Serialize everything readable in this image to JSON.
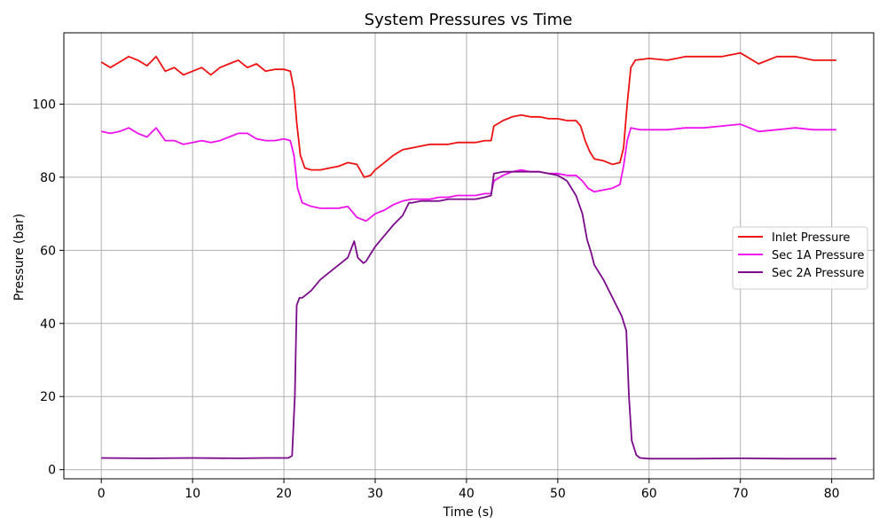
{
  "chart_data": {
    "type": "line",
    "title": "System Pressures vs Time",
    "xlabel": "Time (s)",
    "ylabel": "Pressure (bar)",
    "xlim": [
      -4.1,
      84.6
    ],
    "ylim": [
      -2.5,
      119.5
    ],
    "xticks": [
      0,
      10,
      20,
      30,
      40,
      50,
      60,
      70,
      80
    ],
    "yticks": [
      0,
      20,
      40,
      60,
      80,
      100
    ],
    "grid": true,
    "legend_position": "center-right",
    "series": [
      {
        "name": "Inlet Pressure",
        "color": "#ee1111",
        "points": [
          [
            0,
            111.5
          ],
          [
            1,
            110
          ],
          [
            2,
            111.5
          ],
          [
            3,
            113
          ],
          [
            4,
            112
          ],
          [
            5,
            110.5
          ],
          [
            6,
            113
          ],
          [
            7,
            109
          ],
          [
            8,
            110
          ],
          [
            9,
            108
          ],
          [
            10,
            109
          ],
          [
            11,
            110
          ],
          [
            12,
            108
          ],
          [
            13,
            110
          ],
          [
            14,
            111
          ],
          [
            15,
            112
          ],
          [
            16,
            110
          ],
          [
            17,
            111
          ],
          [
            18,
            109
          ],
          [
            19,
            109.5
          ],
          [
            20,
            109.5
          ],
          [
            20.7,
            109
          ],
          [
            21.1,
            104
          ],
          [
            21.4,
            95
          ],
          [
            21.8,
            86
          ],
          [
            22.3,
            82.5
          ],
          [
            23,
            82
          ],
          [
            24,
            82
          ],
          [
            25,
            82.5
          ],
          [
            26,
            83
          ],
          [
            27,
            84
          ],
          [
            28,
            83.5
          ],
          [
            28.8,
            80
          ],
          [
            29.5,
            80.5
          ],
          [
            30,
            82
          ],
          [
            31,
            84
          ],
          [
            32,
            86
          ],
          [
            33,
            87.5
          ],
          [
            34,
            88
          ],
          [
            35,
            88.5
          ],
          [
            36,
            89
          ],
          [
            37,
            89
          ],
          [
            38,
            89
          ],
          [
            39,
            89.5
          ],
          [
            40,
            89.5
          ],
          [
            41,
            89.5
          ],
          [
            42,
            90
          ],
          [
            42.7,
            90
          ],
          [
            43,
            94
          ],
          [
            44,
            95.5
          ],
          [
            45,
            96.5
          ],
          [
            46,
            97
          ],
          [
            47,
            96.5
          ],
          [
            48,
            96.5
          ],
          [
            49,
            96
          ],
          [
            50,
            96
          ],
          [
            51,
            95.5
          ],
          [
            52,
            95.5
          ],
          [
            52.5,
            94
          ],
          [
            53,
            90
          ],
          [
            53.5,
            87
          ],
          [
            54,
            85
          ],
          [
            55,
            84.5
          ],
          [
            56,
            83.5
          ],
          [
            56.8,
            84
          ],
          [
            57.2,
            88
          ],
          [
            57.6,
            100
          ],
          [
            58,
            110
          ],
          [
            58.5,
            112
          ],
          [
            60,
            112.5
          ],
          [
            62,
            112
          ],
          [
            64,
            113
          ],
          [
            66,
            113
          ],
          [
            68,
            113
          ],
          [
            70,
            114
          ],
          [
            72,
            111
          ],
          [
            74,
            113
          ],
          [
            76,
            113
          ],
          [
            78,
            112
          ],
          [
            80,
            112
          ],
          [
            80.5,
            112
          ]
        ]
      },
      {
        "name": "Sec 1A Pressure",
        "color": "#ee11ee",
        "points": [
          [
            0,
            92.5
          ],
          [
            1,
            92
          ],
          [
            2,
            92.5
          ],
          [
            3,
            93.5
          ],
          [
            4,
            92
          ],
          [
            5,
            91
          ],
          [
            6,
            93.5
          ],
          [
            7,
            90
          ],
          [
            8,
            90
          ],
          [
            9,
            89
          ],
          [
            10,
            89.5
          ],
          [
            11,
            90
          ],
          [
            12,
            89.5
          ],
          [
            13,
            90
          ],
          [
            14,
            91
          ],
          [
            15,
            92
          ],
          [
            16,
            92
          ],
          [
            17,
            90.5
          ],
          [
            18,
            90
          ],
          [
            19,
            90
          ],
          [
            20,
            90.5
          ],
          [
            20.7,
            90
          ],
          [
            21.1,
            86
          ],
          [
            21.5,
            77
          ],
          [
            22,
            73
          ],
          [
            23,
            72
          ],
          [
            24,
            71.5
          ],
          [
            25,
            71.5
          ],
          [
            26,
            71.5
          ],
          [
            27,
            72
          ],
          [
            28,
            69
          ],
          [
            29,
            68
          ],
          [
            30,
            70
          ],
          [
            31,
            71
          ],
          [
            32,
            72.5
          ],
          [
            33,
            73.5
          ],
          [
            34,
            74
          ],
          [
            35,
            74
          ],
          [
            36,
            74
          ],
          [
            37,
            74.5
          ],
          [
            38,
            74.5
          ],
          [
            39,
            75
          ],
          [
            40,
            75
          ],
          [
            41,
            75
          ],
          [
            42,
            75.5
          ],
          [
            42.7,
            75.5
          ],
          [
            43,
            79
          ],
          [
            44,
            80.5
          ],
          [
            45,
            81.5
          ],
          [
            46,
            82
          ],
          [
            47,
            81.5
          ],
          [
            48,
            81.5
          ],
          [
            49,
            81
          ],
          [
            50,
            81
          ],
          [
            51,
            80.5
          ],
          [
            52,
            80.5
          ],
          [
            52.7,
            79
          ],
          [
            53.3,
            77
          ],
          [
            54,
            76
          ],
          [
            55,
            76.5
          ],
          [
            56,
            77
          ],
          [
            56.8,
            78
          ],
          [
            57.2,
            83
          ],
          [
            57.6,
            90
          ],
          [
            58,
            93.5
          ],
          [
            59,
            93
          ],
          [
            60,
            93
          ],
          [
            62,
            93
          ],
          [
            64,
            93.5
          ],
          [
            66,
            93.5
          ],
          [
            68,
            94
          ],
          [
            70,
            94.5
          ],
          [
            72,
            92.5
          ],
          [
            74,
            93
          ],
          [
            76,
            93.5
          ],
          [
            78,
            93
          ],
          [
            80,
            93
          ],
          [
            80.5,
            93
          ]
        ]
      },
      {
        "name": "Sec 2A Pressure",
        "color": "#7a0a8a",
        "points": [
          [
            0,
            3.2
          ],
          [
            5,
            3.1
          ],
          [
            10,
            3.2
          ],
          [
            15,
            3.1
          ],
          [
            18,
            3.2
          ],
          [
            20.5,
            3.2
          ],
          [
            20.9,
            3.8
          ],
          [
            21.2,
            20
          ],
          [
            21.4,
            45
          ],
          [
            21.7,
            47
          ],
          [
            22,
            47
          ],
          [
            23,
            49
          ],
          [
            24,
            52
          ],
          [
            25,
            54
          ],
          [
            26,
            56
          ],
          [
            27,
            58
          ],
          [
            27.7,
            62.5
          ],
          [
            28.1,
            58
          ],
          [
            28.7,
            56.5
          ],
          [
            29,
            57
          ],
          [
            29.5,
            59
          ],
          [
            30,
            61
          ],
          [
            31,
            64
          ],
          [
            32,
            67
          ],
          [
            33,
            69.5
          ],
          [
            33.7,
            73
          ],
          [
            34,
            73
          ],
          [
            35,
            73.5
          ],
          [
            36,
            73.5
          ],
          [
            37,
            73.5
          ],
          [
            38,
            74
          ],
          [
            39,
            74
          ],
          [
            40,
            74
          ],
          [
            41,
            74
          ],
          [
            42,
            74.5
          ],
          [
            42.7,
            75
          ],
          [
            43,
            81
          ],
          [
            44,
            81.5
          ],
          [
            45,
            81.5
          ],
          [
            46,
            81.5
          ],
          [
            47,
            81.5
          ],
          [
            48,
            81.5
          ],
          [
            49,
            81
          ],
          [
            50,
            80.5
          ],
          [
            51,
            79
          ],
          [
            52,
            75
          ],
          [
            52.7,
            70
          ],
          [
            53.2,
            63
          ],
          [
            53.7,
            59
          ],
          [
            54,
            56
          ],
          [
            55,
            52
          ],
          [
            56,
            47
          ],
          [
            57,
            42
          ],
          [
            57.5,
            38
          ],
          [
            57.8,
            20
          ],
          [
            58.1,
            8
          ],
          [
            58.6,
            4
          ],
          [
            59,
            3.2
          ],
          [
            60,
            3
          ],
          [
            65,
            3
          ],
          [
            70,
            3.1
          ],
          [
            75,
            3
          ],
          [
            80,
            3
          ],
          [
            80.5,
            3
          ]
        ]
      }
    ]
  }
}
